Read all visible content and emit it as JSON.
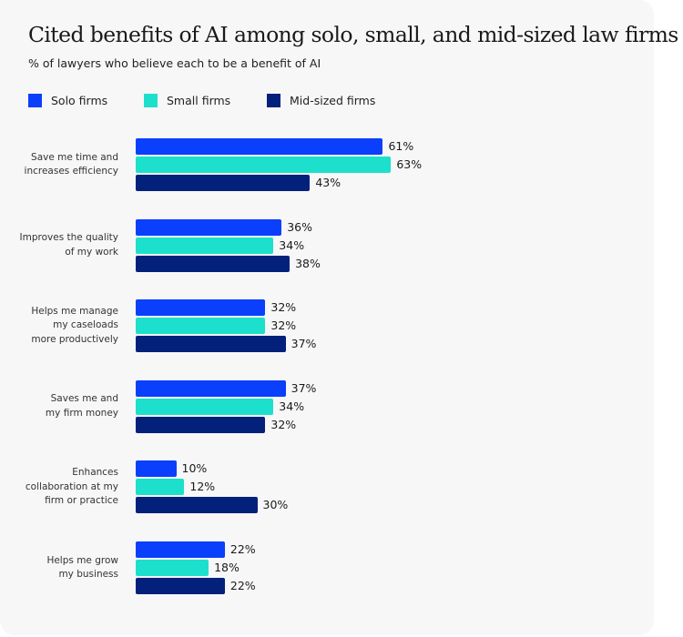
{
  "chart_data": {
    "type": "bar",
    "orientation": "horizontal",
    "title": "Cited benefits of AI among solo, small, and mid-sized law firms",
    "subtitle": "% of lawyers who believe each to be a benefit of AI",
    "categories": [
      [
        "Save me time and",
        "increases efficiency"
      ],
      [
        "Improves the quality",
        "of my work"
      ],
      [
        "Helps me manage",
        "my caseloads",
        "more productively"
      ],
      [
        "Saves me and",
        "my firm money"
      ],
      [
        "Enhances",
        "collaboration at my",
        "firm or practice"
      ],
      [
        "Helps me grow",
        "my business"
      ]
    ],
    "series": [
      {
        "name": "Solo firms",
        "color": "#0a3ffc",
        "values": [
          61,
          36,
          32,
          37,
          10,
          22
        ]
      },
      {
        "name": "Small firms",
        "color": "#1de0cc",
        "values": [
          63,
          34,
          32,
          34,
          12,
          18
        ]
      },
      {
        "name": "Mid-sized firms",
        "color": "#03217a",
        "values": [
          43,
          38,
          37,
          32,
          30,
          22
        ]
      }
    ],
    "value_suffix": "%",
    "legend_position": "top-left",
    "grid": false,
    "xlim": [
      0,
      100
    ]
  }
}
